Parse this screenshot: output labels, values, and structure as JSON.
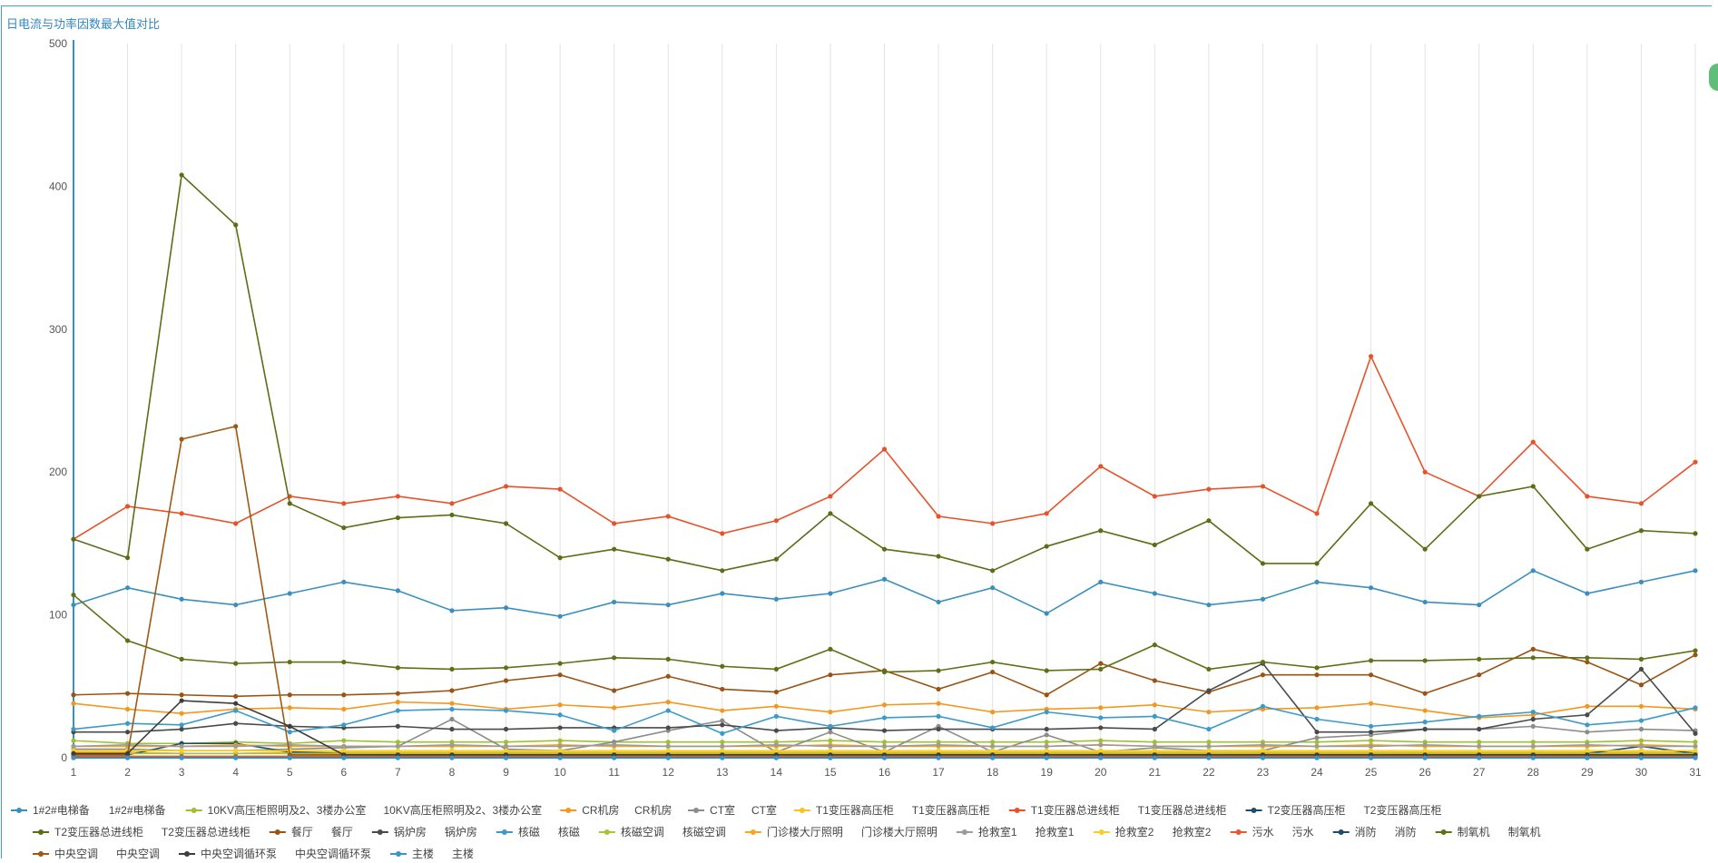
{
  "chart_data": {
    "type": "line",
    "title": "日电流与功率因数最大值对比",
    "xlabel": "",
    "ylabel": "",
    "ylim": [
      0,
      500
    ],
    "yticks": [
      0,
      100,
      200,
      300,
      400,
      500
    ],
    "x": [
      1,
      2,
      3,
      4,
      5,
      6,
      7,
      8,
      9,
      10,
      11,
      12,
      13,
      14,
      15,
      16,
      17,
      18,
      19,
      20,
      21,
      22,
      23,
      24,
      25,
      26,
      27,
      28,
      29,
      30,
      31
    ],
    "legend_position": "bottom",
    "series": [
      {
        "name": "1#2#电梯备",
        "alias": "1#2#电梯备",
        "color": "#3a8fbf",
        "values": [
          107,
          119,
          111,
          107,
          115,
          123,
          117,
          103,
          105,
          99,
          109,
          107,
          115,
          111,
          115,
          125,
          109,
          119,
          101,
          123,
          115,
          107,
          111,
          123,
          119,
          109,
          107,
          131,
          115,
          123,
          131
        ]
      },
      {
        "name": "10KV高压柜照明及2、3楼办公室",
        "alias": "10KV高压柜照明及2、3楼办公室",
        "color": "#9fc02f",
        "values": [
          12,
          10,
          10,
          11,
          10,
          12,
          11,
          11,
          11,
          12,
          11,
          11,
          11,
          11,
          12,
          11,
          11,
          11,
          11,
          12,
          11,
          11,
          11,
          11,
          12,
          11,
          11,
          11,
          11,
          12,
          11
        ]
      },
      {
        "name": "CR机房",
        "alias": "CR机房",
        "color": "#f3971e",
        "values": [
          38,
          34,
          31,
          34,
          35,
          34,
          39,
          38,
          34,
          37,
          35,
          39,
          33,
          36,
          32,
          37,
          38,
          32,
          34,
          35,
          37,
          32,
          34,
          35,
          38,
          33,
          28,
          30,
          36,
          36,
          34
        ]
      },
      {
        "name": "CT室",
        "alias": "CT室",
        "color": "#8c8c8c",
        "values": [
          6,
          6,
          5,
          5,
          6,
          7,
          8,
          27,
          6,
          5,
          11,
          19,
          26,
          4,
          18,
          4,
          22,
          4,
          16,
          4,
          7,
          5,
          5,
          14,
          16,
          20,
          20,
          22,
          18,
          20,
          19
        ]
      },
      {
        "name": "T1变压器高压柜",
        "alias": "T1变压器高压柜",
        "color": "#f7c31d",
        "values": [
          4,
          4,
          3,
          3,
          4,
          4,
          4,
          4,
          4,
          4,
          4,
          4,
          4,
          4,
          4,
          4,
          4,
          4,
          4,
          4,
          4,
          4,
          4,
          4,
          4,
          4,
          4,
          4,
          4,
          4,
          4
        ]
      },
      {
        "name": "T1变压器总进线柜",
        "alias": "T1变压器总进线柜",
        "color": "#e8522a",
        "values": [
          153,
          176,
          171,
          164,
          183,
          178,
          183,
          178,
          190,
          188,
          164,
          169,
          157,
          166,
          183,
          216,
          169,
          164,
          171,
          204,
          183,
          188,
          190,
          171,
          281,
          200,
          183,
          221,
          183,
          178,
          207
        ]
      },
      {
        "name": "T2变压器高压柜",
        "alias": "T2变压器高压柜",
        "color": "#1f4e6a",
        "values": [
          3,
          2,
          10,
          10,
          4,
          3,
          2,
          2,
          2,
          2,
          2,
          2,
          2,
          2,
          2,
          2,
          2,
          2,
          2,
          2,
          2,
          2,
          2,
          2,
          3,
          2,
          2,
          3,
          3,
          8,
          3
        ]
      },
      {
        "name": "T2变压器总进线柜",
        "alias": "T2变压器总进线柜",
        "color": "#5a6e16",
        "values": [
          153,
          140,
          408,
          373,
          178,
          161,
          168,
          170,
          164,
          140,
          146,
          139,
          131,
          139,
          171,
          146,
          141,
          131,
          148,
          159,
          149,
          166,
          136,
          136,
          178,
          146,
          183,
          190,
          146,
          159,
          157
        ]
      },
      {
        "name": "餐厅",
        "alias": "餐厅",
        "color": "#9a5312",
        "values": [
          44,
          45,
          44,
          43,
          44,
          44,
          45,
          47,
          54,
          58,
          47,
          57,
          48,
          46,
          58,
          61,
          48,
          60,
          44,
          66,
          54,
          46,
          58,
          58,
          58,
          45,
          58,
          76,
          67,
          51,
          72
        ]
      },
      {
        "name": "锅炉房",
        "alias": "锅炉房",
        "color": "#4a4a4a",
        "values": [
          18,
          18,
          20,
          24,
          22,
          21,
          22,
          20,
          20,
          21,
          21,
          21,
          23,
          19,
          21,
          19,
          20,
          20,
          20,
          21,
          20,
          47,
          66,
          18,
          18,
          20,
          20,
          27,
          30,
          62,
          17
        ]
      },
      {
        "name": "核磁",
        "alias": "核磁",
        "color": "#3c9ac9",
        "values": [
          20,
          24,
          23,
          33,
          18,
          23,
          33,
          34,
          33,
          30,
          19,
          33,
          17,
          29,
          22,
          28,
          29,
          21,
          32,
          28,
          29,
          20,
          36,
          27,
          22,
          25,
          29,
          32,
          23,
          26,
          35
        ]
      },
      {
        "name": "核磁空调",
        "alias": "核磁空调",
        "color": "#a9c23a",
        "values": [
          3,
          3,
          3,
          3,
          3,
          3,
          3,
          3,
          3,
          3,
          3,
          3,
          3,
          3,
          3,
          3,
          3,
          3,
          3,
          3,
          3,
          3,
          3,
          3,
          3,
          3,
          3,
          3,
          3,
          3,
          3
        ]
      },
      {
        "name": "门诊楼大厅照明",
        "alias": "门诊楼大厅照明",
        "color": "#f5a623",
        "values": [
          8,
          8,
          8,
          9,
          8,
          8,
          8,
          8,
          8,
          9,
          8,
          8,
          8,
          8,
          9,
          8,
          8,
          8,
          8,
          9,
          8,
          8,
          8,
          8,
          9,
          8,
          8,
          8,
          8,
          9,
          8
        ]
      },
      {
        "name": "抢救室1",
        "alias": "抢救室1",
        "color": "#9b9b9b",
        "values": [
          8,
          9,
          8,
          8,
          9,
          8,
          8,
          9,
          8,
          8,
          9,
          8,
          8,
          9,
          8,
          8,
          9,
          8,
          8,
          9,
          8,
          8,
          9,
          8,
          8,
          9,
          8,
          8,
          9,
          8,
          8
        ]
      },
      {
        "name": "抢救室2",
        "alias": "抢救室2",
        "color": "#f8cf2a",
        "values": [
          5,
          5,
          5,
          5,
          5,
          5,
          5,
          5,
          5,
          5,
          5,
          5,
          5,
          5,
          5,
          5,
          5,
          5,
          5,
          5,
          5,
          5,
          5,
          5,
          5,
          5,
          5,
          5,
          5,
          5,
          5
        ]
      },
      {
        "name": "污水",
        "alias": "污水",
        "color": "#e9582d",
        "values": [
          1,
          1,
          1,
          1,
          1,
          1,
          1,
          1,
          1,
          1,
          1,
          1,
          1,
          1,
          1,
          1,
          1,
          1,
          1,
          1,
          1,
          1,
          1,
          1,
          1,
          1,
          1,
          1,
          1,
          1,
          1
        ]
      },
      {
        "name": "消防",
        "alias": "消防",
        "color": "#1e4d69",
        "values": [
          0,
          0,
          0,
          0,
          0,
          0,
          0,
          0,
          0,
          0,
          0,
          0,
          0,
          0,
          0,
          0,
          0,
          0,
          0,
          0,
          0,
          0,
          0,
          0,
          0,
          0,
          0,
          0,
          0,
          0,
          0
        ]
      },
      {
        "name": "制氧机",
        "alias": "制氧机",
        "color": "#5f7015",
        "values": [
          114,
          82,
          69,
          66,
          67,
          67,
          63,
          62,
          63,
          66,
          70,
          69,
          64,
          62,
          76,
          60,
          61,
          67,
          61,
          62,
          79,
          62,
          67,
          63,
          68,
          68,
          69,
          70,
          70,
          69,
          75
        ]
      },
      {
        "name": "中央空调",
        "alias": "中央空调",
        "color": "#9c5a14",
        "values": [
          2,
          2,
          223,
          232,
          2,
          2,
          2,
          2,
          2,
          2,
          2,
          2,
          2,
          2,
          2,
          2,
          2,
          2,
          2,
          2,
          2,
          2,
          2,
          2,
          2,
          2,
          2,
          2,
          2,
          2,
          2
        ]
      },
      {
        "name": "中央空调循环泵",
        "alias": "中央空调循环泵",
        "color": "#3d3d3d",
        "values": [
          3,
          3,
          40,
          38,
          22,
          2,
          2,
          2,
          2,
          2,
          2,
          2,
          2,
          2,
          2,
          2,
          2,
          2,
          2,
          2,
          2,
          2,
          2,
          2,
          2,
          2,
          2,
          2,
          2,
          2,
          2
        ]
      },
      {
        "name": "主楼",
        "alias": "主楼",
        "color": "#3b94c3",
        "values": [
          0,
          0,
          0,
          0,
          0,
          0,
          0,
          0,
          0,
          0,
          0,
          0,
          0,
          0,
          0,
          0,
          0,
          0,
          0,
          0,
          0,
          0,
          0,
          0,
          0,
          0,
          0,
          0,
          0,
          0,
          0
        ]
      }
    ]
  }
}
